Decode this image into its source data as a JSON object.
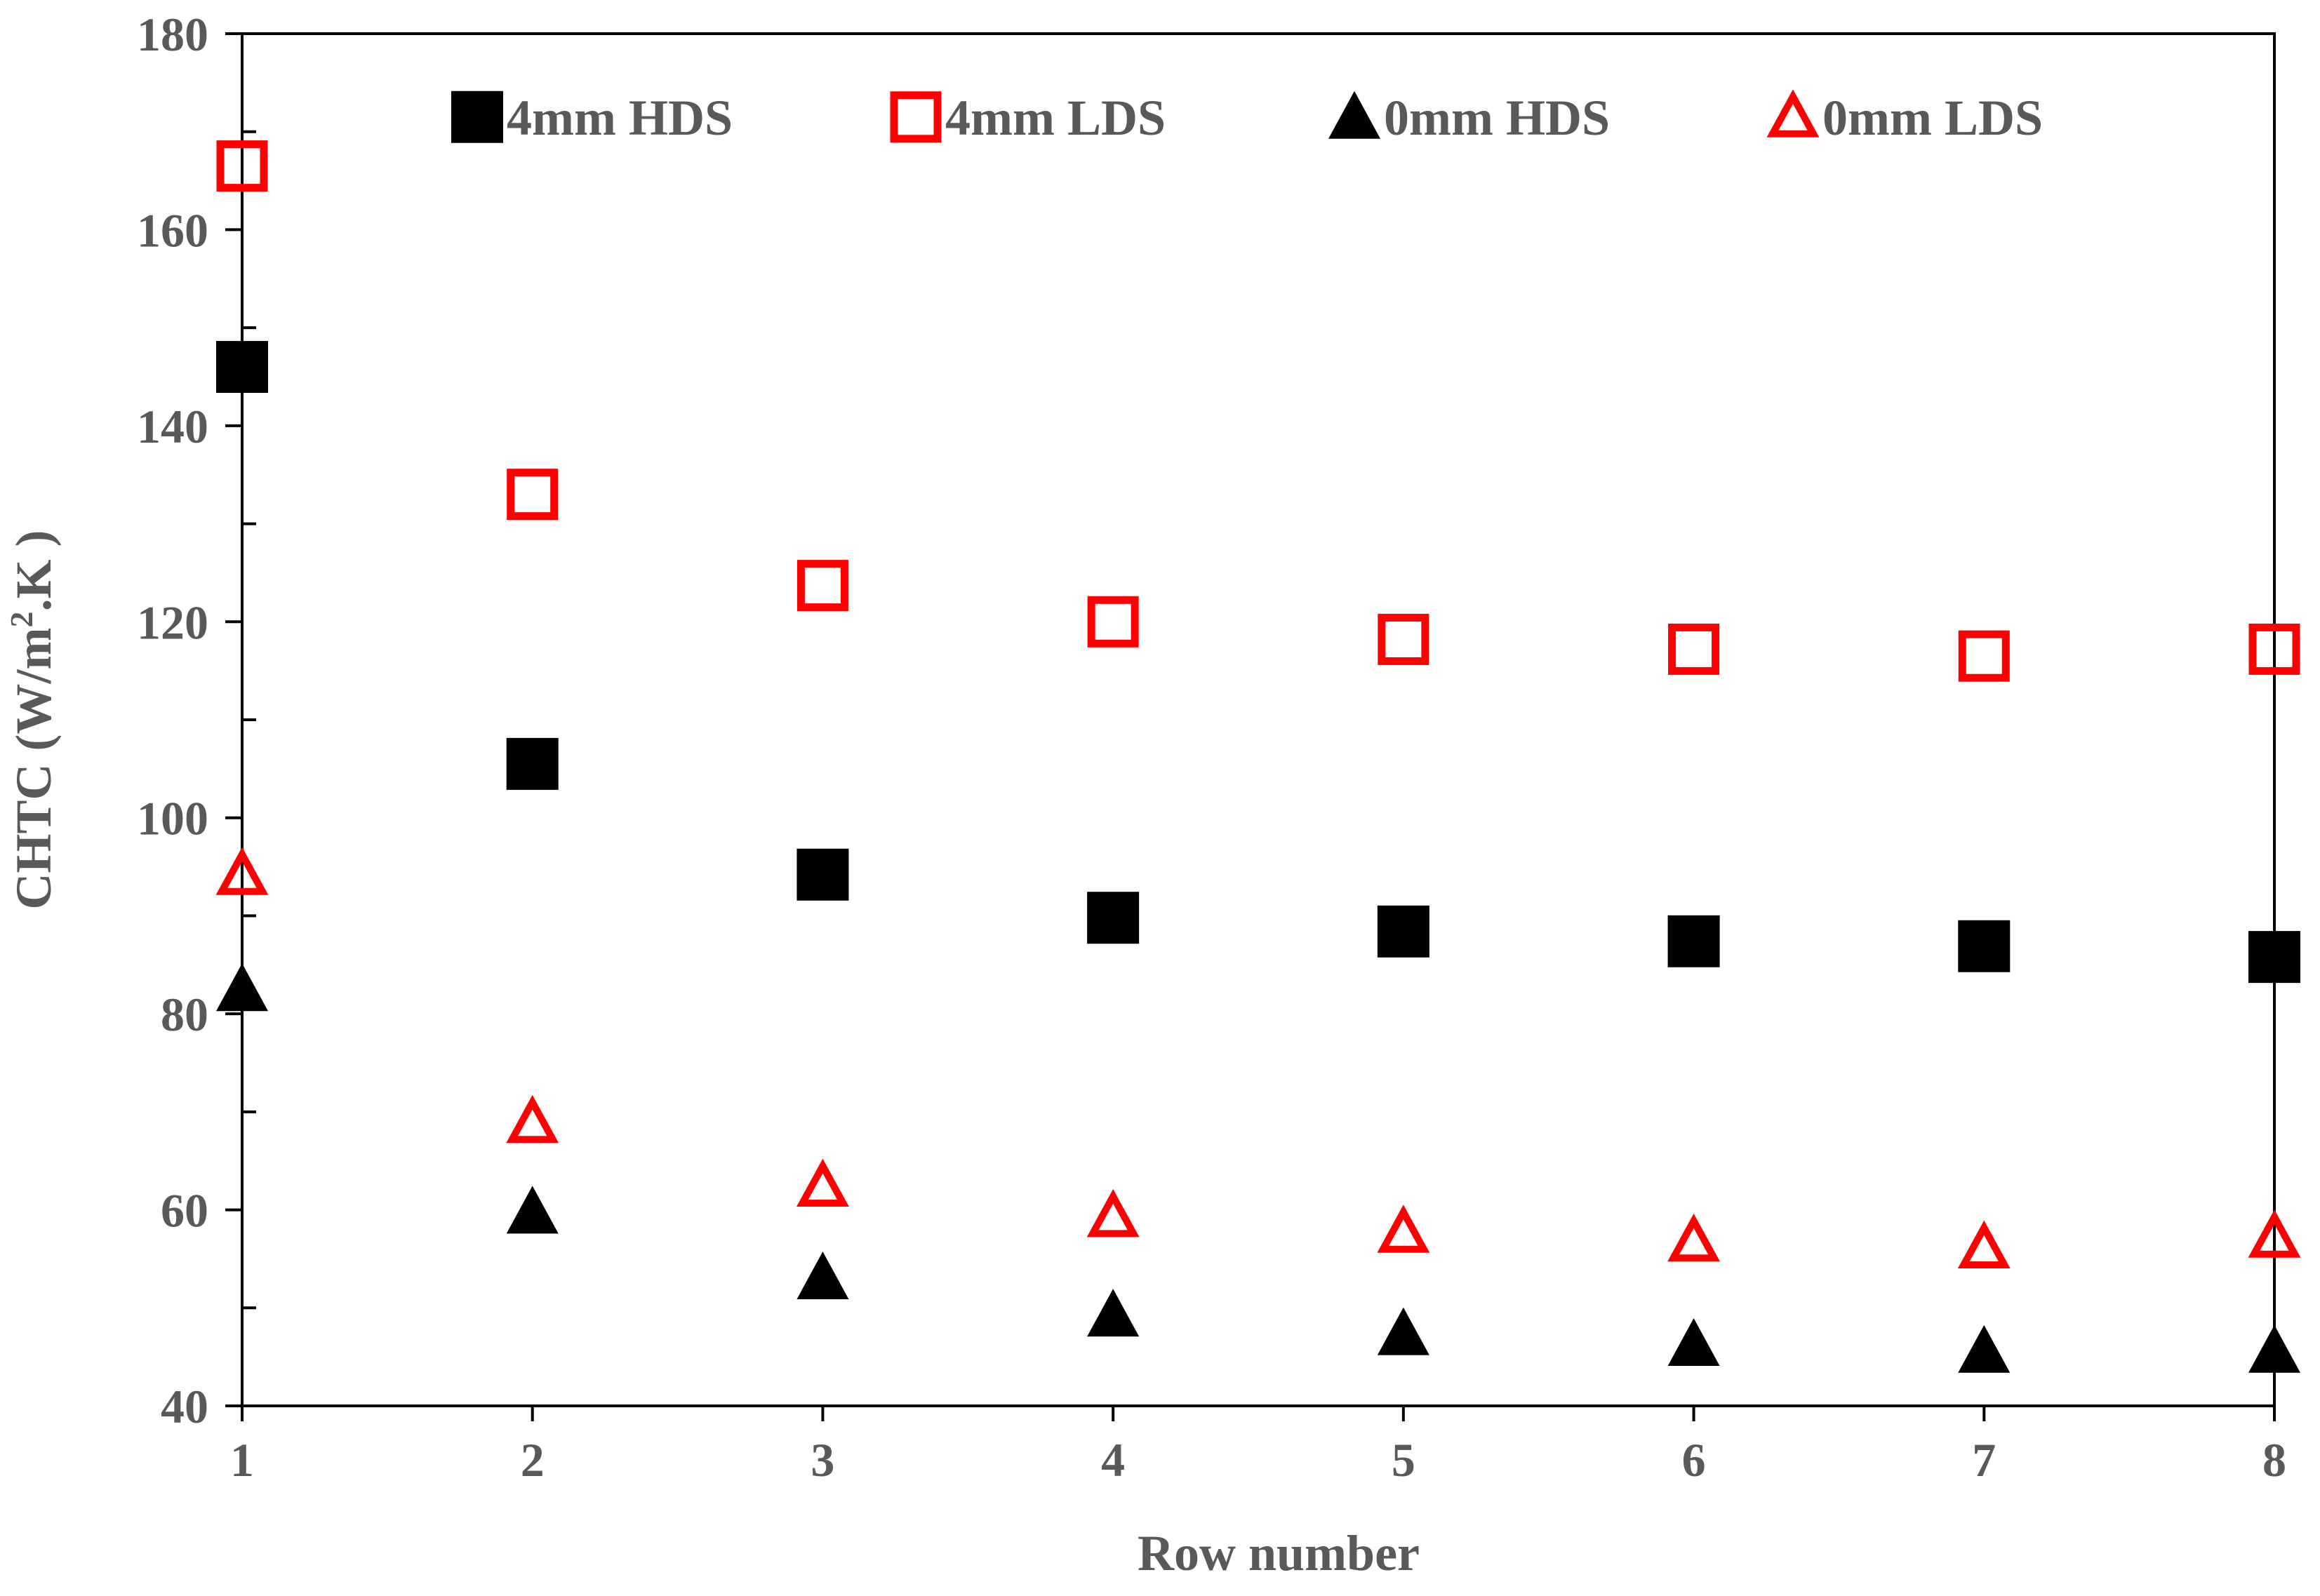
{
  "chart_data": {
    "type": "scatter",
    "xlabel": "Row number",
    "ylabel": "CHTC (W/m².K )",
    "ylabel_parts": {
      "pre": "CHTC (W/m",
      "sup": "2",
      "post": ".K )"
    },
    "xlim": [
      1,
      8
    ],
    "ylim": [
      40,
      180
    ],
    "x_ticks": [
      "1",
      "2",
      "3",
      "4",
      "5",
      "6",
      "7",
      "8"
    ],
    "y_ticks": [
      "40",
      "60",
      "80",
      "100",
      "120",
      "140",
      "160",
      "180"
    ],
    "grid": false,
    "legend_position": "top",
    "x": [
      1,
      2,
      3,
      4,
      5,
      6,
      7,
      8
    ],
    "series": [
      {
        "name": "4mm HDS",
        "marker": "square-filled",
        "color": "#000000",
        "values": [
          146,
          105.5,
          94.2,
          89.8,
          88.4,
          87.4,
          86.9,
          85.8
        ]
      },
      {
        "name": "4mm LDS",
        "marker": "square-open",
        "color": "#ff0000",
        "values": [
          166.5,
          133,
          123.7,
          120,
          118.2,
          117.2,
          116.5,
          117.2
        ]
      },
      {
        "name": "0mm HDS",
        "marker": "triangle-filled",
        "color": "#000000",
        "values": [
          82.5,
          59.8,
          53.1,
          49.3,
          47.4,
          46.3,
          45.6,
          45.6
        ]
      },
      {
        "name": "0mm LDS",
        "marker": "triangle-open",
        "color": "#ff0000",
        "values": [
          94.2,
          68.9,
          62.4,
          59.3,
          57.7,
          56.8,
          56.1,
          57.2
        ]
      }
    ]
  }
}
